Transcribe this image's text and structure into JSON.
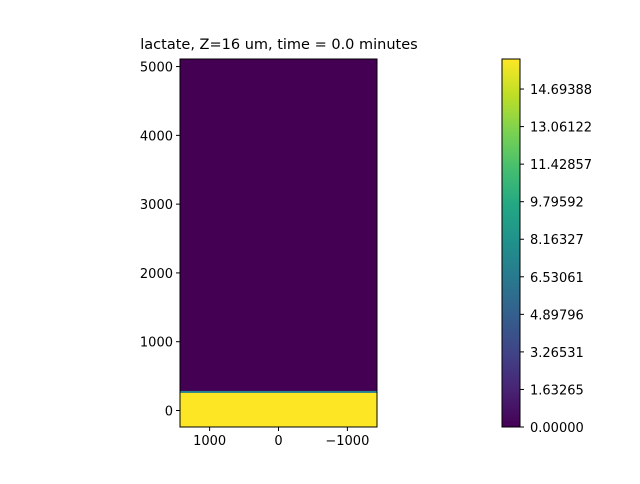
{
  "chart_data": {
    "type": "heatmap",
    "title": "lactate, Z=16 um, time = 0.0 minutes",
    "xlabel": "",
    "ylabel": "",
    "x_axis_inverted": true,
    "xlim": [
      1430,
      -1430
    ],
    "ylim": [
      -240,
      5110
    ],
    "x_ticks": [
      1000,
      0,
      -1000
    ],
    "x_tick_labels": [
      "1000",
      "0",
      "−1000"
    ],
    "y_ticks": [
      0,
      1000,
      2000,
      3000,
      4000,
      5000
    ],
    "y_tick_labels": [
      "0",
      "1000",
      "2000",
      "3000",
      "4000",
      "5000"
    ],
    "field": {
      "description_regions": [
        {
          "y_from": -240,
          "y_to": 270,
          "value": 16.0
        },
        {
          "y_from": 270,
          "y_to": 5110,
          "value": 0.0
        }
      ]
    },
    "colorbar": {
      "colormap": "viridis",
      "min": 0.0,
      "max": 16.0,
      "tick_labels": [
        "0.00000",
        "1.63265",
        "3.26531",
        "4.89796",
        "6.53061",
        "8.16327",
        "9.79592",
        "11.42857",
        "13.06122",
        "14.69388"
      ],
      "tick_values": [
        0.0,
        1.63265,
        3.26531,
        4.89796,
        6.53061,
        8.16327,
        9.79592,
        11.42857,
        13.06122,
        14.69388
      ]
    },
    "colors": {
      "low": "#440154",
      "high": "#fde725"
    }
  }
}
